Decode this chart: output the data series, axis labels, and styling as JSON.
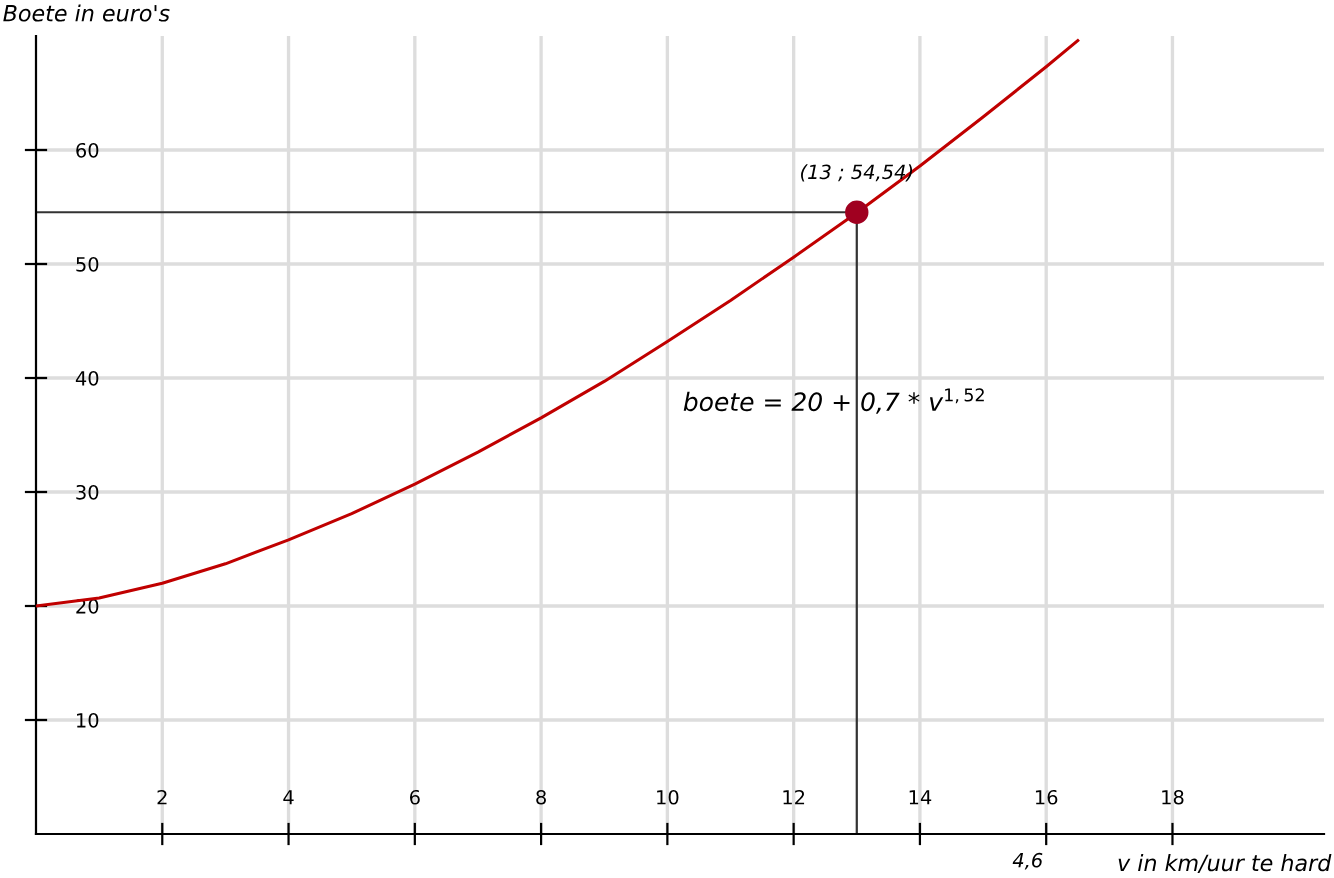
{
  "chart_data": {
    "type": "line",
    "xlabel": "v in km/uur te hard",
    "ylabel": "Boete in euro's",
    "xlim": [
      0,
      20.4
    ],
    "ylim": [
      0,
      70
    ],
    "xticks": [
      2,
      4,
      6,
      8,
      10,
      12,
      14,
      16,
      18
    ],
    "yticks": [
      10,
      20,
      30,
      40,
      50,
      60
    ],
    "grid": true,
    "series": [
      {
        "color": "#c00000",
        "x": [
          0,
          1,
          2,
          3,
          4,
          5,
          6,
          7,
          8,
          9,
          10,
          11,
          12,
          13,
          14,
          15,
          16,
          16.5
        ],
        "values": [
          20,
          20.7,
          22.0,
          23.7,
          25.8,
          28.1,
          30.7,
          33.5,
          36.5,
          39.7,
          43.2,
          46.8,
          50.6,
          54.5,
          58.6,
          62.9,
          67.3,
          69.6
        ]
      },
      {
        "type": "scatter",
        "color": "#a00020",
        "marker": "circle",
        "x": [
          13
        ],
        "values": [
          54.54
        ]
      }
    ],
    "ref_lines": [
      {
        "axis": "x",
        "value": 13,
        "color": "#333333"
      },
      {
        "axis": "y",
        "value": 54.54,
        "color": "#333333"
      }
    ],
    "annotations": [
      {
        "text": "(13 ; 54,54)",
        "x": 13,
        "y": 54.54
      },
      "boete = 20 + 0,7 * v$^{1,52}$",
      "4,6"
    ]
  }
}
